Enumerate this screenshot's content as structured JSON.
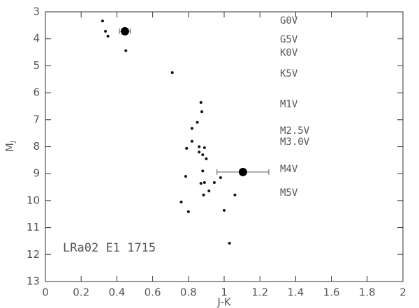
{
  "chart_data": {
    "type": "scatter",
    "xlabel": "J-K",
    "ylabel": "M",
    "ylabel_subscript": "J",
    "xlim": [
      0,
      2
    ],
    "xticks": [
      0,
      0.2,
      0.4,
      0.6,
      0.8,
      1,
      1.2,
      1.4,
      1.6,
      1.8,
      2
    ],
    "ylim": [
      3,
      13
    ],
    "yticks": [
      3,
      4,
      5,
      6,
      7,
      8,
      9,
      10,
      11,
      12,
      13
    ],
    "invert_y": true,
    "series": [
      {
        "color": "#111111",
        "marker_size": 2,
        "x": [
          0.32,
          0.336,
          0.35,
          0.45,
          0.71,
          0.87,
          0.875,
          0.85,
          0.82,
          0.82,
          0.86,
          0.79,
          0.89,
          0.86,
          0.88,
          0.9,
          0.88,
          0.785,
          0.98,
          0.945,
          0.87,
          0.89,
          0.915,
          1.06,
          0.885,
          0.76,
          0.8,
          1.0,
          1.03
        ],
        "values": [
          3.34,
          3.72,
          3.9,
          4.44,
          5.25,
          6.36,
          6.7,
          7.1,
          7.32,
          7.8,
          8.0,
          8.06,
          8.04,
          8.2,
          8.3,
          8.45,
          8.9,
          9.1,
          9.15,
          9.33,
          9.36,
          9.33,
          9.64,
          9.79,
          9.79,
          10.05,
          10.41,
          10.36,
          11.58
        ]
      },
      {
        "color": "#000000",
        "marker_size": 6,
        "x": [
          0.445,
          1.105
        ],
        "values": [
          3.72,
          8.94
        ],
        "x_err": [
          0.03,
          0.145
        ]
      }
    ],
    "annotations": [
      {
        "text": "G0V",
        "y": 3.34
      },
      {
        "text": "G5V",
        "y": 4.03
      },
      {
        "text": "K0V",
        "y": 4.52
      },
      {
        "text": "K5V",
        "y": 5.3
      },
      {
        "text": "M1V",
        "y": 6.44
      },
      {
        "text": "M2.5V",
        "y": 7.42
      },
      {
        "text": "M3.0V",
        "y": 7.83
      },
      {
        "text": "M4V",
        "y": 8.84
      },
      {
        "text": "M5V",
        "y": 9.72
      }
    ],
    "label": "LRa02 E1 1715"
  }
}
